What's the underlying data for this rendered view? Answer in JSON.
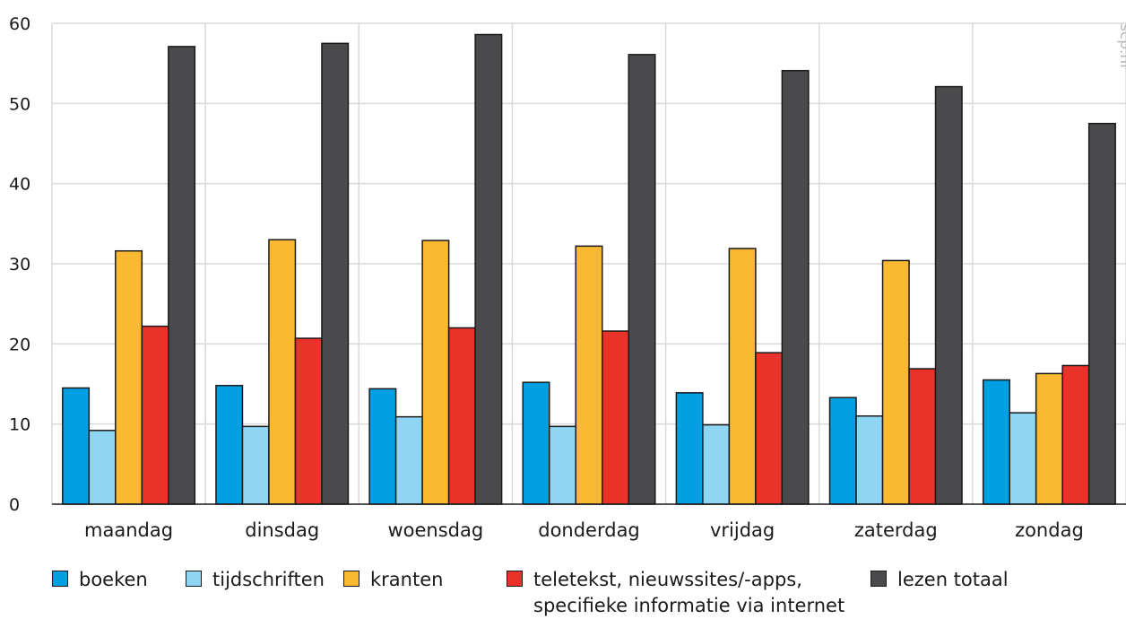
{
  "chart_data": {
    "type": "bar",
    "title": "",
    "xlabel": "",
    "ylabel": "",
    "ylim": [
      0,
      60
    ],
    "yticks": [
      "0",
      "10",
      "20",
      "30",
      "40",
      "50",
      "60"
    ],
    "grid": true,
    "legend_position": "bottom",
    "source_label": "scp.nl",
    "categories": [
      "maandag",
      "dinsdag",
      "woensdag",
      "donderdag",
      "vrijdag",
      "zaterdag",
      "zondag"
    ],
    "series": [
      {
        "name": "boeken",
        "color": "#00a0e2",
        "values": [
          14.5,
          14.8,
          14.4,
          15.2,
          13.9,
          13.3,
          15.5
        ]
      },
      {
        "name": "tijdschriften",
        "color": "#8fd6f5",
        "values": [
          9.2,
          9.7,
          10.9,
          9.7,
          9.9,
          11.0,
          11.4
        ]
      },
      {
        "name": "kranten",
        "color": "#fbb831",
        "values": [
          31.6,
          33.0,
          32.9,
          32.2,
          31.9,
          30.4,
          16.3
        ]
      },
      {
        "name": "teletekst, nieuwssites/-apps,\nspecifieke informatie via internet",
        "color": "#e9322a",
        "values": [
          22.2,
          20.7,
          22.0,
          21.6,
          18.9,
          16.9,
          17.3
        ]
      },
      {
        "name": "lezen totaal",
        "color": "#4a4a4c",
        "values": [
          57.1,
          57.5,
          58.6,
          56.1,
          54.1,
          52.1,
          47.5
        ]
      }
    ]
  }
}
